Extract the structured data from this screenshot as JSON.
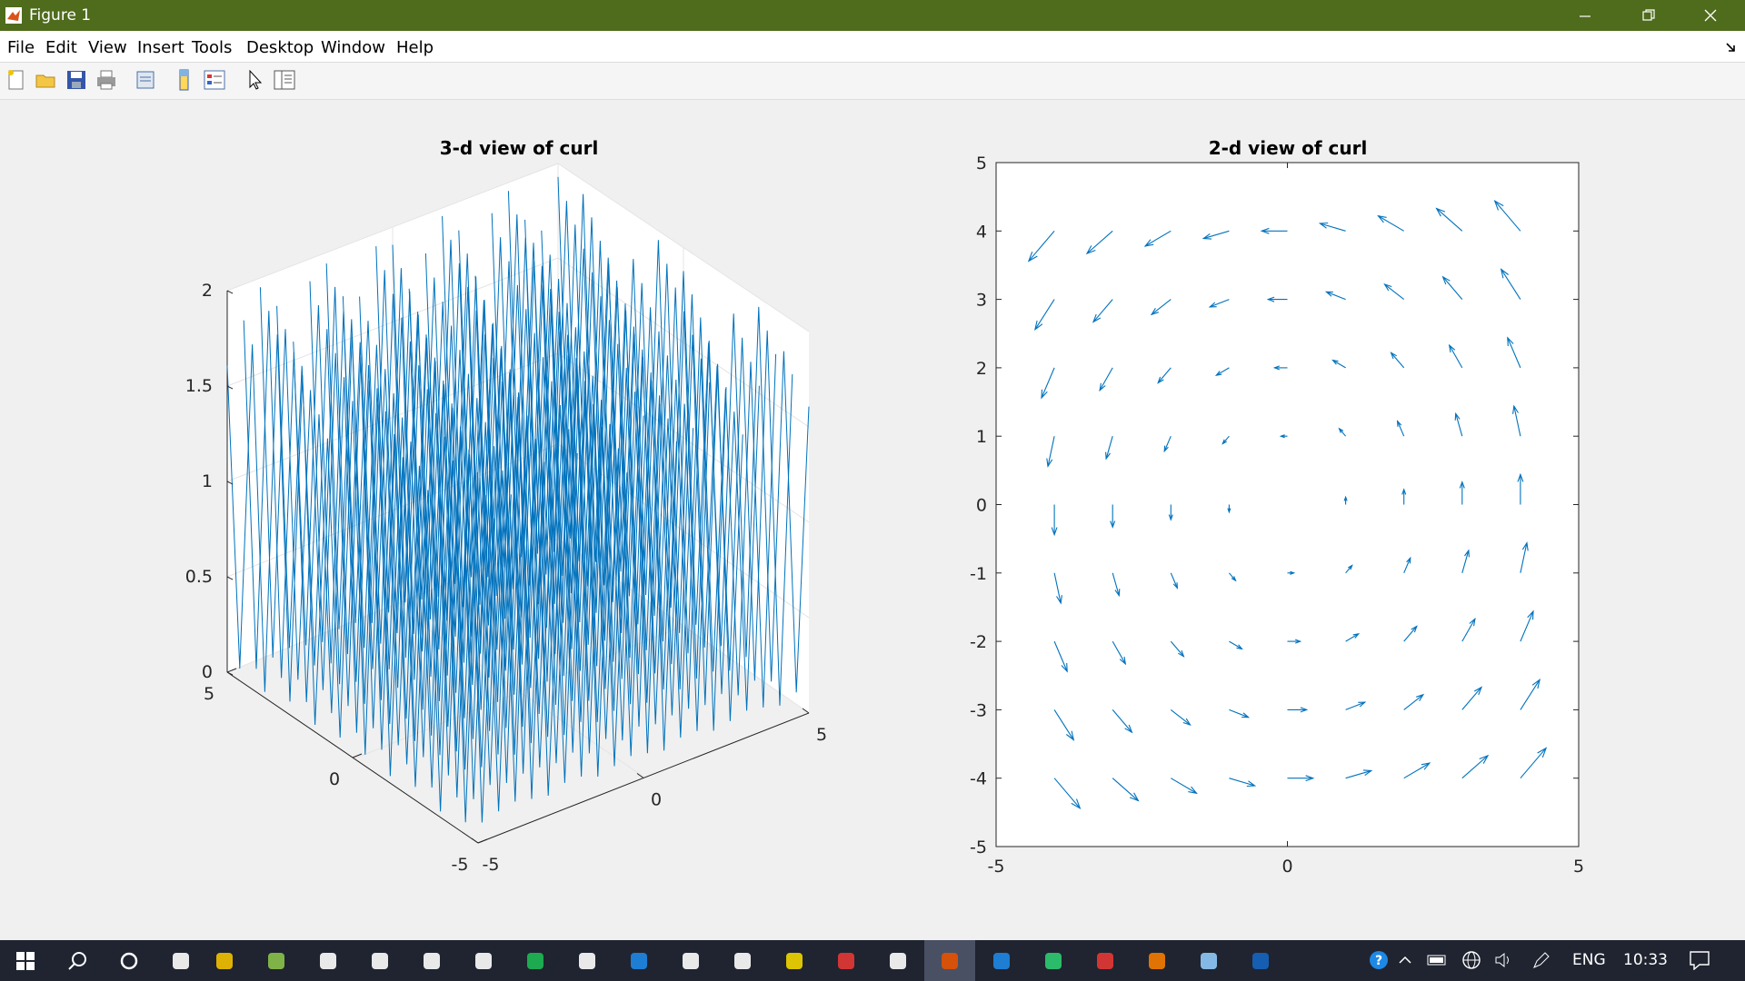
{
  "window": {
    "title": "Figure 1"
  },
  "menu": [
    "File",
    "Edit",
    "View",
    "Insert",
    "Tools",
    "Desktop",
    "Window",
    "Help"
  ],
  "toolbar": [
    "new-figure-icon",
    "open-folder-icon",
    "save-icon",
    "print-icon",
    "print-preview-icon",
    "colorbar-icon",
    "legend-icon",
    "pointer-icon",
    "property-editor-icon"
  ],
  "chart_data": [
    {
      "type": "line3d",
      "title": "3-d view of curl",
      "zticks": [
        "0",
        "0.5",
        "1",
        "1.5",
        "2"
      ],
      "xticks": [
        "-5",
        "0",
        "5"
      ],
      "yticks": [
        "-5",
        "0",
        "5"
      ],
      "xlim": [
        -5,
        5
      ],
      "ylim": [
        -5,
        5
      ],
      "zlim": [
        0,
        2
      ],
      "series_color": "#0072bd",
      "grid": true
    },
    {
      "type": "quiver",
      "title": "2-d view of curl",
      "xticks": [
        "-5",
        "0",
        "5"
      ],
      "yticks": [
        "-5",
        "-4",
        "-3",
        "-2",
        "-1",
        "0",
        "1",
        "2",
        "3",
        "4",
        "5"
      ],
      "xlim": [
        -5,
        5
      ],
      "ylim": [
        -5,
        5
      ],
      "grid_points": [
        -4,
        -3,
        -2,
        -1,
        0,
        1,
        2,
        3,
        4
      ],
      "field": "u = -y, v = x",
      "series_color": "#0072bd"
    }
  ],
  "taskbar": {
    "lang": "ENG",
    "time": "10:33",
    "icons": [
      "windows-start-icon",
      "search-icon",
      "cortana-icon",
      "task-view-icon",
      "file-explorer-icon",
      "app-plus-icon",
      "settings-icon",
      "store-icon",
      "video-icon",
      "camera-icon",
      "spotify-icon",
      "clock-icon",
      "edge-icon",
      "notepad-icon",
      "calculator-icon",
      "sticky-notes-icon",
      "acrobat-icon",
      "word-pdf-icon",
      "matlab-icon",
      "vscode-icon",
      "pycharm-icon",
      "chrome-icon",
      "office-icon",
      "notepad-plus-icon",
      "vpn-icon"
    ]
  }
}
